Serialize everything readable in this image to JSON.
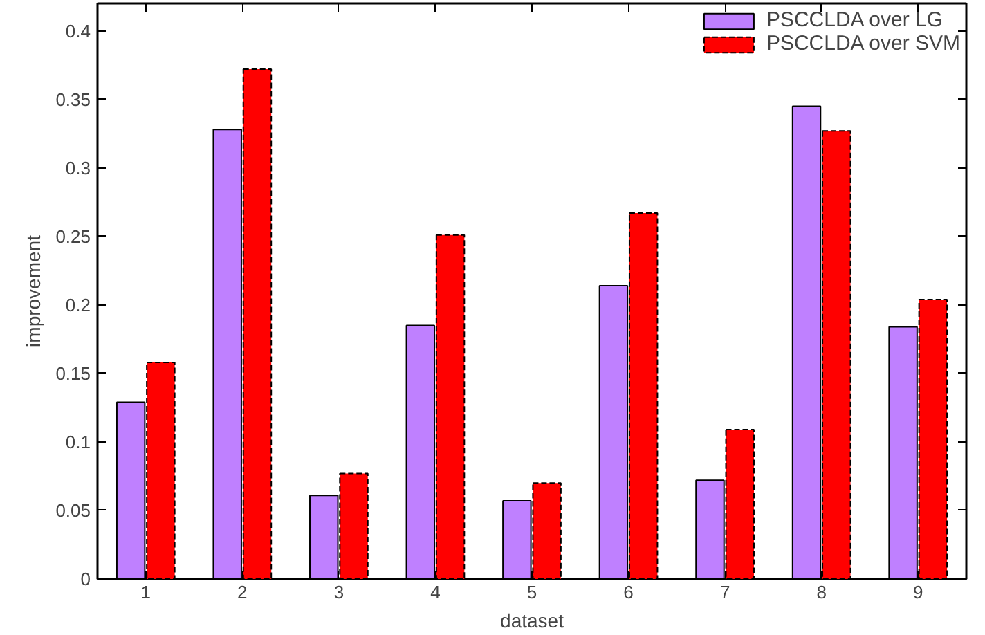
{
  "chart_data": {
    "type": "bar",
    "xlabel": "dataset",
    "ylabel": "improvement",
    "categories": [
      "1",
      "2",
      "3",
      "4",
      "5",
      "6",
      "7",
      "8",
      "9"
    ],
    "series": [
      {
        "name": "PSCCLDA over LG",
        "color": "#bf80ff",
        "line_style": "solid",
        "values": [
          0.129,
          0.328,
          0.061,
          0.185,
          0.057,
          0.214,
          0.072,
          0.345,
          0.184
        ]
      },
      {
        "name": "PSCCLDA over SVM",
        "color": "#ff0000",
        "line_style": "dashed",
        "values": [
          0.158,
          0.372,
          0.077,
          0.251,
          0.07,
          0.267,
          0.109,
          0.327,
          0.204
        ]
      }
    ],
    "ylim": [
      0,
      0.42
    ],
    "yticks": [
      0,
      {
        "value": 0.05,
        "label": "0.05"
      },
      {
        "value": 0.1,
        "label": "0.1"
      },
      {
        "value": 0.15,
        "label": "0.15"
      },
      {
        "value": 0.2,
        "label": "0.2"
      },
      {
        "value": 0.25,
        "label": "0.25"
      },
      {
        "value": 0.3,
        "label": "0.3"
      },
      {
        "value": 0.35,
        "label": "0.35"
      },
      {
        "value": 0.4,
        "label": "0.4"
      }
    ],
    "grid": false,
    "legend": "top right"
  }
}
